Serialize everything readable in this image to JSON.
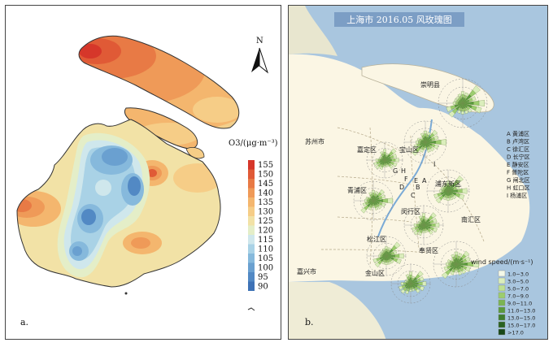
{
  "panel_a": {
    "label": "a.",
    "north_letter": "N",
    "legend_title": "O3/(μg·m⁻³)",
    "legend_levels": [
      "155",
      "150",
      "145",
      "140",
      "135",
      "130",
      "125",
      "120",
      "115",
      "110",
      "105",
      "100",
      "95",
      "90"
    ],
    "legend_colors": [
      "#d6372a",
      "#e05a36",
      "#e87a45",
      "#ef9a58",
      "#f4b66e",
      "#f6cd87",
      "#f2e2a6",
      "#e4eec8",
      "#cfe7ec",
      "#a9d2e6",
      "#86b9dc",
      "#6aa0d0",
      "#5289c4",
      "#3e72b6"
    ]
  },
  "panel_b": {
    "label": "b.",
    "title": "上海市 2016.05 风玫瑰图",
    "district_labels": [
      "崇明县",
      "苏州市",
      "嘉定区",
      "宝山区",
      "青浦区",
      "浦东新区",
      "闵行区",
      "南汇区",
      "松江区",
      "奉贤区",
      "嘉兴市",
      "金山区"
    ],
    "district_key": [
      "A 黄浦区",
      "B 卢湾区",
      "C 徐汇区",
      "D 长宁区",
      "E 静安区",
      "F 普陀区",
      "G 闸北区",
      "H 虹口区",
      "I 杨浦区"
    ],
    "center_letters": [
      "G",
      "H",
      "F",
      "E",
      "A",
      "D",
      "B",
      "C",
      "I"
    ],
    "wind_legend_title": "wind speed/(m·s⁻¹)",
    "wind_bins": [
      "1.0~3.0",
      "3.0~5.0",
      "5.0~7.0",
      "7.0~9.0",
      "9.0~11.0",
      "11.0~13.0",
      "13.0~15.0",
      "15.0~17.0",
      ">17.0"
    ],
    "wind_colors": [
      "#f4f9e8",
      "#dbeebc",
      "#bfe093",
      "#9ccd6e",
      "#7bb553",
      "#5a9a3d",
      "#3f7e2d",
      "#2a6221",
      "#184818"
    ]
  }
}
